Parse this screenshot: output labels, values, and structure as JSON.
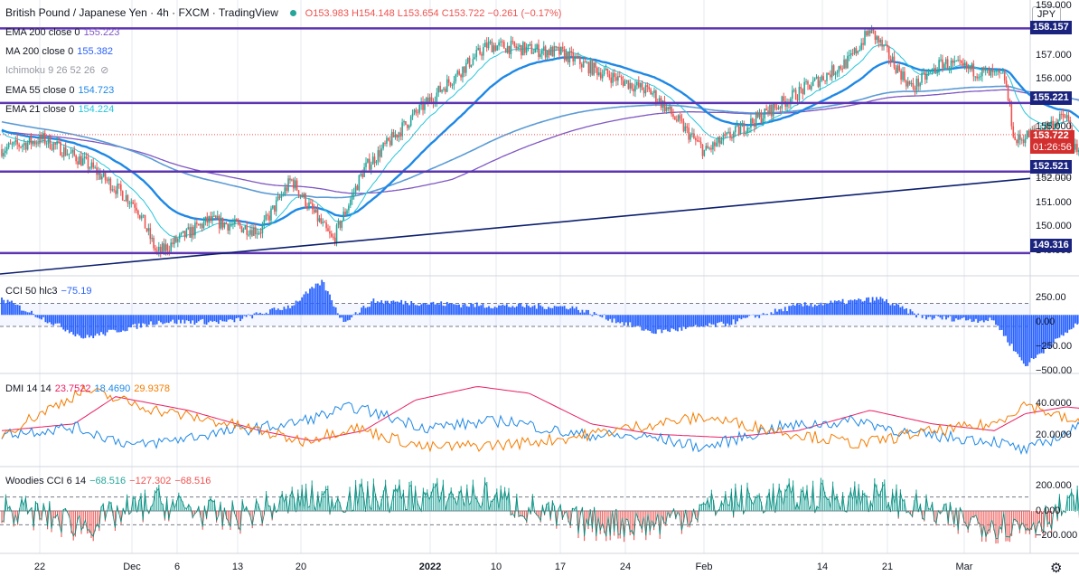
{
  "header": {
    "title": "British Pound / Japanese Yen · 4h · FXCM · TradingView",
    "ohlc": "O153.983 H154.148 L153.654 C153.722 −0.261 (−0.17%)"
  },
  "currency_button": "JPY",
  "legends": [
    {
      "label": "EMA 200 close 0",
      "value": "155.223",
      "color": "#7e57c2"
    },
    {
      "label": "MA 200 close 0",
      "value": "155.382",
      "color": "#2962ff"
    },
    {
      "label": "Ichimoku 9 26 52 26",
      "value": "",
      "color": "#787b86"
    },
    {
      "label": "EMA 55 close 0",
      "value": "154.723",
      "color": "#1e88e5"
    },
    {
      "label": "EMA 21 close 0",
      "value": "154.224",
      "color": "#26c6da"
    }
  ],
  "cci_legend": {
    "label": "CCI 50 hlc3",
    "value": "−75.19"
  },
  "dmi_legend": {
    "label": "DMI 14 14",
    "v1": "23.7522",
    "v2": "18.4690",
    "v3": "29.9378"
  },
  "woodies_legend": {
    "label": "Woodies CCI 6 14",
    "v1": "−68.516",
    "v2": "−127.302",
    "v3": "−68.516"
  },
  "price_tags": [
    {
      "value": "158.157",
      "color": "#1a237e"
    },
    {
      "value": "155.221",
      "color": "#1a237e"
    },
    {
      "value": "152.521",
      "color": "#1a237e"
    },
    {
      "value": "149.316",
      "color": "#1a237e"
    }
  ],
  "current_price": {
    "value": "153.722",
    "countdown": "01:26:56"
  },
  "price_axis": [
    "159.000",
    "157.000",
    "156.000",
    "155.000",
    "154.000",
    "153.000",
    "152.000",
    "151.000",
    "150.000",
    "149.000"
  ],
  "cci_axis": [
    "250.00",
    "0.00",
    "−250.00",
    "−500.00"
  ],
  "dmi_axis": [
    "40.0000",
    "20.0000"
  ],
  "woodies_axis": [
    "200.000",
    "0.000",
    "−200.000"
  ],
  "time_axis": [
    {
      "label": "22",
      "bold": false
    },
    {
      "label": "Dec",
      "bold": false
    },
    {
      "label": "6",
      "bold": false
    },
    {
      "label": "13",
      "bold": false
    },
    {
      "label": "20",
      "bold": false
    },
    {
      "label": "2022",
      "bold": true
    },
    {
      "label": "10",
      "bold": false
    },
    {
      "label": "17",
      "bold": false
    },
    {
      "label": "24",
      "bold": false
    },
    {
      "label": "Feb",
      "bold": false
    },
    {
      "label": "14",
      "bold": false
    },
    {
      "label": "21",
      "bold": false
    },
    {
      "label": "Mar",
      "bold": false
    }
  ],
  "colors": {
    "up": "#26a69a",
    "down": "#ef5350",
    "grid": "#e6e9f0",
    "hline": "#5e35b1",
    "trend": "#0d1f6e",
    "cci": "#2962ff",
    "dmi_plus": "#1e88e5",
    "dmi_minus": "#f57c00",
    "adx": "#e91e63"
  },
  "chart_data": [
    {
      "type": "candlestick",
      "symbol": "GBP/JPY",
      "interval": "4h",
      "ylim": [
        148.6,
        159.2
      ],
      "horizontal_levels": [
        158.157,
        155.221,
        152.521,
        149.316
      ],
      "trendline": [
        {
          "x": "Nov 18",
          "y": 148.5
        },
        {
          "x": "Mar 4",
          "y": 152.5
        }
      ],
      "key_points": [
        {
          "x": "Nov 18",
          "y": 153.4
        },
        {
          "x": "Nov 22",
          "y": 153.8
        },
        {
          "x": "Nov 26",
          "y": 152.9
        },
        {
          "x": "Dec 1",
          "y": 151.2
        },
        {
          "x": "Dec 3",
          "y": 149.3
        },
        {
          "x": "Dec 8",
          "y": 150.6
        },
        {
          "x": "Dec 13",
          "y": 150.2
        },
        {
          "x": "Dec 16",
          "y": 152.2
        },
        {
          "x": "Dec 20",
          "y": 149.8
        },
        {
          "x": "Dec 23",
          "y": 152.6
        },
        {
          "x": "Dec 28",
          "y": 154.8
        },
        {
          "x": "Jan 4",
          "y": 157.5
        },
        {
          "x": "Jan 11",
          "y": 157.2
        },
        {
          "x": "Jan 14",
          "y": 156.6
        },
        {
          "x": "Jan 20",
          "y": 155.6
        },
        {
          "x": "Jan 25",
          "y": 153.3
        },
        {
          "x": "Feb 1",
          "y": 155.1
        },
        {
          "x": "Feb 8",
          "y": 156.9
        },
        {
          "x": "Feb 10",
          "y": 158.1
        },
        {
          "x": "Feb 14",
          "y": 155.8
        },
        {
          "x": "Feb 17",
          "y": 156.8
        },
        {
          "x": "Feb 23",
          "y": 156.2
        },
        {
          "x": "Feb 24",
          "y": 153.7
        },
        {
          "x": "Mar 1",
          "y": 154.7
        },
        {
          "x": "Mar 2",
          "y": 153.1
        },
        {
          "x": "Mar 4",
          "y": 155.0
        },
        {
          "x": "Mar 7",
          "y": 153.7
        }
      ]
    },
    {
      "type": "bar",
      "name": "CCI 50 hlc3",
      "ylim": [
        -500,
        300
      ],
      "levels": [
        100,
        -100
      ],
      "key_points": [
        {
          "x": "Nov 18",
          "y": 140
        },
        {
          "x": "Nov 26",
          "y": -200
        },
        {
          "x": "Dec 3",
          "y": -60
        },
        {
          "x": "Dec 10",
          "y": -60
        },
        {
          "x": "Dec 16",
          "y": 80
        },
        {
          "x": "Dec 19",
          "y": 290
        },
        {
          "x": "Dec 21",
          "y": -60
        },
        {
          "x": "Dec 24",
          "y": 120
        },
        {
          "x": "Jan 4",
          "y": 80
        },
        {
          "x": "Jan 12",
          "y": 70
        },
        {
          "x": "Jan 20",
          "y": -150
        },
        {
          "x": "Jan 27",
          "y": -80
        },
        {
          "x": "Feb 3",
          "y": 80
        },
        {
          "x": "Feb 11",
          "y": 140
        },
        {
          "x": "Feb 15",
          "y": -20
        },
        {
          "x": "Feb 22",
          "y": -50
        },
        {
          "x": "Feb 25",
          "y": -440
        },
        {
          "x": "Mar 2",
          "y": -80
        },
        {
          "x": "Mar 7",
          "y": -75
        }
      ]
    },
    {
      "type": "line",
      "name": "DMI 14 14",
      "ylim": [
        5,
        55
      ],
      "series": [
        {
          "name": "ADX",
          "key_points": [
            {
              "x": "Nov 18",
              "y": 24
            },
            {
              "x": "Nov 25",
              "y": 28
            },
            {
              "x": "Nov 29",
              "y": 44
            },
            {
              "x": "Dec 6",
              "y": 36
            },
            {
              "x": "Dec 13",
              "y": 24
            },
            {
              "x": "Dec 18",
              "y": 18
            },
            {
              "x": "Dec 23",
              "y": 24
            },
            {
              "x": "Dec 28",
              "y": 42
            },
            {
              "x": "Jan 3",
              "y": 50
            },
            {
              "x": "Jan 8",
              "y": 46
            },
            {
              "x": "Jan 14",
              "y": 28
            },
            {
              "x": "Jan 20",
              "y": 22
            },
            {
              "x": "Jan 27",
              "y": 20
            },
            {
              "x": "Feb 3",
              "y": 24
            },
            {
              "x": "Feb 10",
              "y": 36
            },
            {
              "x": "Feb 16",
              "y": 28
            },
            {
              "x": "Feb 22",
              "y": 24
            },
            {
              "x": "Feb 25",
              "y": 34
            },
            {
              "x": "Mar 1",
              "y": 38
            },
            {
              "x": "Mar 4",
              "y": 36
            },
            {
              "x": "Mar 7",
              "y": 30
            }
          ]
        },
        {
          "name": "+DI",
          "key_points": [
            {
              "x": "Nov 18",
              "y": 22
            },
            {
              "x": "Nov 25",
              "y": 26
            },
            {
              "x": "Dec 1",
              "y": 15
            },
            {
              "x": "Dec 8",
              "y": 22
            },
            {
              "x": "Dec 16",
              "y": 28
            },
            {
              "x": "Dec 22",
              "y": 38
            },
            {
              "x": "Dec 29",
              "y": 26
            },
            {
              "x": "Jan 6",
              "y": 30
            },
            {
              "x": "Jan 12",
              "y": 22
            },
            {
              "x": "Jan 20",
              "y": 20
            },
            {
              "x": "Jan 25",
              "y": 14
            },
            {
              "x": "Feb 1",
              "y": 26
            },
            {
              "x": "Feb 9",
              "y": 30
            },
            {
              "x": "Feb 14",
              "y": 22
            },
            {
              "x": "Feb 22",
              "y": 18
            },
            {
              "x": "Feb 25",
              "y": 12
            },
            {
              "x": "Mar 3",
              "y": 28
            },
            {
              "x": "Mar 7",
              "y": 18
            }
          ]
        },
        {
          "name": "-DI",
          "key_points": [
            {
              "x": "Nov 18",
              "y": 22
            },
            {
              "x": "Nov 26",
              "y": 48
            },
            {
              "x": "Dec 3",
              "y": 36
            },
            {
              "x": "Dec 10",
              "y": 28
            },
            {
              "x": "Dec 17",
              "y": 18
            },
            {
              "x": "Dec 22",
              "y": 26
            },
            {
              "x": "Dec 29",
              "y": 14
            },
            {
              "x": "Jan 6",
              "y": 16
            },
            {
              "x": "Jan 12",
              "y": 20
            },
            {
              "x": "Jan 20",
              "y": 28
            },
            {
              "x": "Jan 25",
              "y": 32
            },
            {
              "x": "Feb 1",
              "y": 24
            },
            {
              "x": "Feb 9",
              "y": 16
            },
            {
              "x": "Feb 14",
              "y": 22
            },
            {
              "x": "Feb 22",
              "y": 28
            },
            {
              "x": "Feb 25",
              "y": 40
            },
            {
              "x": "Mar 3",
              "y": 26
            },
            {
              "x": "Mar 7",
              "y": 30
            }
          ]
        }
      ]
    },
    {
      "type": "bar",
      "name": "Woodies CCI 6 14",
      "ylim": [
        -280,
        280
      ],
      "levels": [
        100,
        -100
      ],
      "key_points": [
        {
          "x": "Nov 18",
          "y": 60
        },
        {
          "x": "Nov 26",
          "y": -200
        },
        {
          "x": "Dec 3",
          "y": 120
        },
        {
          "x": "Dec 10",
          "y": -100
        },
        {
          "x": "Dec 17",
          "y": 150
        },
        {
          "x": "Dec 24",
          "y": 180
        },
        {
          "x": "Jan 4",
          "y": 200
        },
        {
          "x": "Jan 12",
          "y": -150
        },
        {
          "x": "Jan 20",
          "y": -180
        },
        {
          "x": "Jan 27",
          "y": 120
        },
        {
          "x": "Feb 3",
          "y": 180
        },
        {
          "x": "Feb 11",
          "y": 200
        },
        {
          "x": "Feb 18",
          "y": -120
        },
        {
          "x": "Feb 25",
          "y": -220
        },
        {
          "x": "Mar 3",
          "y": 180
        },
        {
          "x": "Mar 7",
          "y": -68
        }
      ]
    }
  ]
}
